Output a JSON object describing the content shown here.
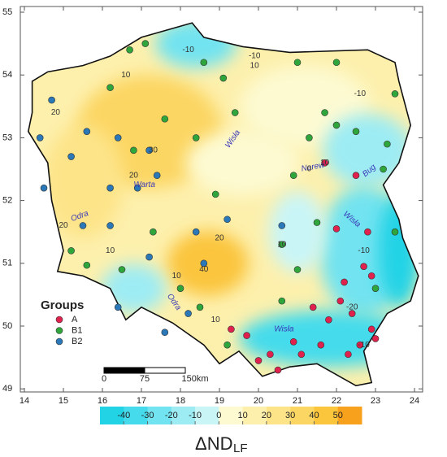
{
  "map": {
    "lon_ticks": [
      14,
      15,
      16,
      17,
      18,
      19,
      20,
      21,
      22,
      23,
      24
    ],
    "lat_ticks": [
      49,
      50,
      51,
      52,
      53,
      54,
      55
    ],
    "legend": {
      "title": "Groups",
      "groups": [
        {
          "name": "A",
          "color": "#e0214e"
        },
        {
          "name": "B1",
          "color": "#2fa63c"
        },
        {
          "name": "B2",
          "color": "#2a78b8"
        }
      ]
    },
    "stations": [
      {
        "group": 0,
        "lon": 22.7,
        "lat": 50.95
      },
      {
        "group": 0,
        "lon": 22.9,
        "lat": 50.8
      },
      {
        "group": 0,
        "lon": 22.2,
        "lat": 50.7
      },
      {
        "group": 0,
        "lon": 22.1,
        "lat": 50.4
      },
      {
        "group": 0,
        "lon": 21.8,
        "lat": 50.1
      },
      {
        "group": 0,
        "lon": 22.4,
        "lat": 50.2
      },
      {
        "group": 0,
        "lon": 22.9,
        "lat": 49.95
      },
      {
        "group": 0,
        "lon": 22.6,
        "lat": 49.7
      },
      {
        "group": 0,
        "lon": 21.6,
        "lat": 49.7
      },
      {
        "group": 0,
        "lon": 20.9,
        "lat": 49.75
      },
      {
        "group": 0,
        "lon": 20.3,
        "lat": 49.55
      },
      {
        "group": 0,
        "lon": 20.0,
        "lat": 49.45
      },
      {
        "group": 0,
        "lon": 19.7,
        "lat": 49.85
      },
      {
        "group": 0,
        "lon": 21.1,
        "lat": 49.55
      },
      {
        "group": 0,
        "lon": 22.3,
        "lat": 49.55
      },
      {
        "group": 0,
        "lon": 21.4,
        "lat": 50.3
      },
      {
        "group": 0,
        "lon": 22.5,
        "lat": 52.4
      },
      {
        "group": 0,
        "lon": 22.0,
        "lat": 51.55
      },
      {
        "group": 0,
        "lon": 22.8,
        "lat": 51.5
      },
      {
        "group": 0,
        "lon": 21.7,
        "lat": 52.6
      },
      {
        "group": 0,
        "lon": 19.3,
        "lat": 49.95
      },
      {
        "group": 0,
        "lon": 23.0,
        "lat": 49.8
      },
      {
        "group": 0,
        "lon": 20.5,
        "lat": 49.3
      },
      {
        "group": 1,
        "lon": 16.7,
        "lat": 54.4
      },
      {
        "group": 1,
        "lon": 17.1,
        "lat": 54.5
      },
      {
        "group": 1,
        "lon": 18.6,
        "lat": 54.2
      },
      {
        "group": 1,
        "lon": 19.1,
        "lat": 53.95
      },
      {
        "group": 1,
        "lon": 21.0,
        "lat": 54.2
      },
      {
        "group": 1,
        "lon": 22.0,
        "lat": 54.2
      },
      {
        "group": 1,
        "lon": 23.5,
        "lat": 53.7
      },
      {
        "group": 1,
        "lon": 22.0,
        "lat": 53.2
      },
      {
        "group": 1,
        "lon": 21.3,
        "lat": 53.0
      },
      {
        "group": 1,
        "lon": 22.5,
        "lat": 53.1
      },
      {
        "group": 1,
        "lon": 21.7,
        "lat": 53.4
      },
      {
        "group": 1,
        "lon": 23.3,
        "lat": 52.9
      },
      {
        "group": 1,
        "lon": 23.2,
        "lat": 52.5
      },
      {
        "group": 1,
        "lon": 20.9,
        "lat": 52.4
      },
      {
        "group": 1,
        "lon": 19.4,
        "lat": 53.4
      },
      {
        "group": 1,
        "lon": 18.4,
        "lat": 53.0
      },
      {
        "group": 1,
        "lon": 17.6,
        "lat": 53.3
      },
      {
        "group": 1,
        "lon": 16.2,
        "lat": 53.8
      },
      {
        "group": 1,
        "lon": 16.8,
        "lat": 52.8
      },
      {
        "group": 1,
        "lon": 21.5,
        "lat": 51.65
      },
      {
        "group": 1,
        "lon": 20.6,
        "lat": 51.3
      },
      {
        "group": 1,
        "lon": 21.0,
        "lat": 50.9
      },
      {
        "group": 1,
        "lon": 18.9,
        "lat": 52.1
      },
      {
        "group": 1,
        "lon": 17.3,
        "lat": 51.5
      },
      {
        "group": 1,
        "lon": 16.5,
        "lat": 50.9
      },
      {
        "group": 1,
        "lon": 18.0,
        "lat": 50.6
      },
      {
        "group": 1,
        "lon": 18.5,
        "lat": 50.3
      },
      {
        "group": 1,
        "lon": 23.5,
        "lat": 51.5
      },
      {
        "group": 1,
        "lon": 20.6,
        "lat": 50.4
      },
      {
        "group": 1,
        "lon": 23.0,
        "lat": 50.6
      },
      {
        "group": 1,
        "lon": 19.2,
        "lat": 49.7
      },
      {
        "group": 1,
        "lon": 15.6,
        "lat": 50.97
      },
      {
        "group": 1,
        "lon": 15.2,
        "lat": 51.2
      },
      {
        "group": 2,
        "lon": 14.7,
        "lat": 53.6
      },
      {
        "group": 2,
        "lon": 14.4,
        "lat": 53.0
      },
      {
        "group": 2,
        "lon": 15.2,
        "lat": 52.7
      },
      {
        "group": 2,
        "lon": 15.6,
        "lat": 53.1
      },
      {
        "group": 2,
        "lon": 16.4,
        "lat": 53.0
      },
      {
        "group": 2,
        "lon": 17.2,
        "lat": 52.8
      },
      {
        "group": 2,
        "lon": 17.4,
        "lat": 52.4
      },
      {
        "group": 2,
        "lon": 16.9,
        "lat": 52.2
      },
      {
        "group": 2,
        "lon": 16.2,
        "lat": 52.2
      },
      {
        "group": 2,
        "lon": 15.5,
        "lat": 51.6
      },
      {
        "group": 2,
        "lon": 16.2,
        "lat": 51.6
      },
      {
        "group": 2,
        "lon": 17.2,
        "lat": 51.1
      },
      {
        "group": 2,
        "lon": 18.4,
        "lat": 51.5
      },
      {
        "group": 2,
        "lon": 19.2,
        "lat": 51.7
      },
      {
        "group": 2,
        "lon": 20.6,
        "lat": 51.6
      },
      {
        "group": 2,
        "lon": 16.4,
        "lat": 50.3
      },
      {
        "group": 2,
        "lon": 17.6,
        "lat": 49.9
      },
      {
        "group": 2,
        "lon": 18.2,
        "lat": 50.2
      },
      {
        "group": 2,
        "lon": 14.5,
        "lat": 52.2
      },
      {
        "group": 2,
        "lon": 18.6,
        "lat": 51.0
      }
    ],
    "rivers": [
      "Wisła",
      "Narew",
      "Wisła",
      "Warta",
      "Odra",
      "Odra",
      "Wisła",
      "Bug"
    ],
    "contour_labels": [
      20,
      30,
      20,
      10,
      -10,
      -10,
      10,
      20,
      40,
      10,
      10,
      0,
      10,
      -10,
      -20,
      -10,
      10,
      20,
      10,
      -10
    ],
    "scale_bar": {
      "ticks": [
        "0",
        "75",
        "150km"
      ]
    },
    "colorbar": {
      "range": [
        -50,
        60
      ],
      "ticks": [
        -40,
        -30,
        -20,
        -10,
        0,
        10,
        20,
        30,
        40,
        50
      ],
      "colors": [
        "#22d3e6",
        "#45dbec",
        "#72e3f0",
        "#9decf4",
        "#c9f5f7",
        "#fdfad2",
        "#fdf0ad",
        "#fde489",
        "#fcd663",
        "#fbc53c",
        "#f7a11d"
      ],
      "label": "ΔND",
      "label_sub": "LF"
    }
  }
}
